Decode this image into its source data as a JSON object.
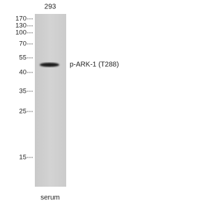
{
  "lane_label": "293",
  "markers": [
    "170",
    "130",
    "100",
    "70",
    "55",
    "40",
    "35",
    "25",
    "15"
  ],
  "band_label": "p-ARK-1 (T288)",
  "sample_label": "serum"
}
